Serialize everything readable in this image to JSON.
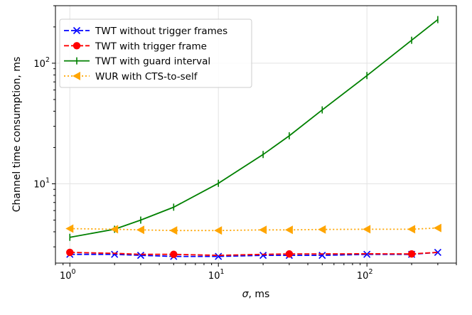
{
  "chart_data": {
    "type": "line",
    "xlabel": "σ, ms",
    "ylabel": "Channel time consumption, ms",
    "xscale": "log",
    "yscale": "log",
    "xlim": [
      0.8,
      400
    ],
    "ylim": [
      2.2,
      300
    ],
    "grid": true,
    "legend_position": "top-left",
    "x_ticks": [
      {
        "value": 1,
        "base": "10",
        "exp": "0"
      },
      {
        "value": 10,
        "base": "10",
        "exp": "1"
      },
      {
        "value": 100,
        "base": "10",
        "exp": "2"
      }
    ],
    "y_ticks": [
      {
        "value": 10,
        "base": "10",
        "exp": "1"
      },
      {
        "value": 100,
        "base": "10",
        "exp": "2"
      }
    ],
    "series": [
      {
        "name": "TWT without trigger frames",
        "color": "#0000ff",
        "line_style": "dashed",
        "marker": "x",
        "points": [
          [
            1,
            2.6
          ],
          [
            2,
            2.6
          ],
          [
            3,
            2.55
          ],
          [
            5,
            2.5
          ],
          [
            10,
            2.5
          ],
          [
            20,
            2.55
          ],
          [
            30,
            2.55
          ],
          [
            50,
            2.55
          ],
          [
            100,
            2.6
          ],
          [
            200,
            2.6
          ],
          [
            300,
            2.7
          ]
        ],
        "marker_x": [
          1,
          2,
          3,
          5,
          10,
          20,
          30,
          50,
          100,
          200,
          300
        ]
      },
      {
        "name": "TWT with trigger frame",
        "color": "#ff0000",
        "line_style": "dashed",
        "marker": "circle",
        "points": [
          [
            1,
            2.7
          ],
          [
            2,
            2.65
          ],
          [
            3,
            2.6
          ],
          [
            5,
            2.6
          ],
          [
            10,
            2.55
          ],
          [
            20,
            2.6
          ],
          [
            30,
            2.62
          ],
          [
            50,
            2.62
          ],
          [
            100,
            2.63
          ],
          [
            200,
            2.62
          ],
          [
            300,
            2.7
          ]
        ],
        "marker_x": [
          1,
          5,
          30,
          200
        ]
      },
      {
        "name": "TWT with guard interval",
        "color": "#008000",
        "line_style": "solid",
        "marker": "vline",
        "points": [
          [
            1,
            3.6
          ],
          [
            2,
            4.2
          ],
          [
            3,
            5.0
          ],
          [
            5,
            6.4
          ],
          [
            10,
            10.1
          ],
          [
            20,
            17.5
          ],
          [
            30,
            25
          ],
          [
            50,
            41
          ],
          [
            100,
            79
          ],
          [
            200,
            155
          ],
          [
            300,
            230
          ]
        ],
        "marker_x": [
          1,
          2,
          3,
          5,
          10,
          20,
          30,
          50,
          100,
          200,
          300
        ]
      },
      {
        "name": "WUR with CTS-to-self",
        "color": "#ffa500",
        "line_style": "dotted",
        "marker": "triangle-left",
        "points": [
          [
            1,
            4.25
          ],
          [
            2,
            4.2
          ],
          [
            3,
            4.15
          ],
          [
            5,
            4.1
          ],
          [
            10,
            4.1
          ],
          [
            20,
            4.15
          ],
          [
            30,
            4.15
          ],
          [
            50,
            4.18
          ],
          [
            100,
            4.2
          ],
          [
            200,
            4.2
          ],
          [
            300,
            4.3
          ]
        ],
        "marker_x": [
          1,
          2,
          3,
          5,
          10,
          20,
          30,
          50,
          100,
          200,
          300
        ]
      }
    ]
  }
}
